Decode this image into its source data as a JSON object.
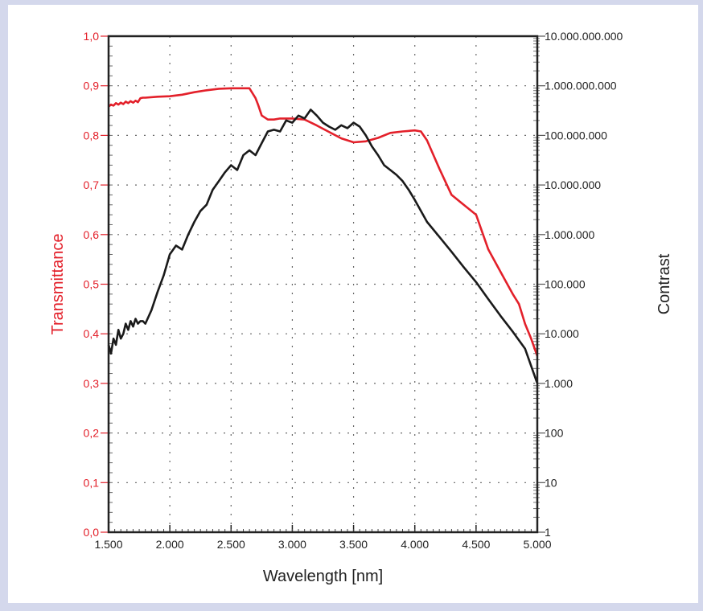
{
  "chart_data": {
    "type": "line",
    "title": "",
    "xlabel": "Wavelength [nm]",
    "ylabel_left": "Transmittance",
    "ylabel_right": "Contrast",
    "xlim": [
      1500,
      5000
    ],
    "ylim_left": [
      0.0,
      1.0
    ],
    "ylim_right": [
      1,
      10000000000
    ],
    "right_scale": "log",
    "grid": true,
    "x_ticks": [
      {
        "v": 1500,
        "label": "1.500"
      },
      {
        "v": 2000,
        "label": "2.000"
      },
      {
        "v": 2500,
        "label": "2.500"
      },
      {
        "v": 3000,
        "label": "3.000"
      },
      {
        "v": 3500,
        "label": "3.500"
      },
      {
        "v": 4000,
        "label": "4.000"
      },
      {
        "v": 4500,
        "label": "4.500"
      },
      {
        "v": 5000,
        "label": "5.000"
      }
    ],
    "y_left_ticks": [
      {
        "v": 0.0,
        "label": "0,0"
      },
      {
        "v": 0.1,
        "label": "0,1"
      },
      {
        "v": 0.2,
        "label": "0,2"
      },
      {
        "v": 0.3,
        "label": "0,3"
      },
      {
        "v": 0.4,
        "label": "0,4"
      },
      {
        "v": 0.5,
        "label": "0,5"
      },
      {
        "v": 0.6,
        "label": "0,6"
      },
      {
        "v": 0.7,
        "label": "0,7"
      },
      {
        "v": 0.8,
        "label": "0,8"
      },
      {
        "v": 0.9,
        "label": "0,9"
      },
      {
        "v": 1.0,
        "label": "1,0"
      }
    ],
    "y_right_ticks": [
      {
        "v": 1,
        "label": "1"
      },
      {
        "v": 10,
        "label": "10"
      },
      {
        "v": 100,
        "label": "100"
      },
      {
        "v": 1000,
        "label": "1.000"
      },
      {
        "v": 10000,
        "label": "10.000"
      },
      {
        "v": 100000,
        "label": "100.000"
      },
      {
        "v": 1000000,
        "label": "1.000.000"
      },
      {
        "v": 10000000,
        "label": "10.000.000"
      },
      {
        "v": 100000000,
        "label": "100.000.000"
      },
      {
        "v": 1000000000,
        "label": "1.000.000.000"
      },
      {
        "v": 10000000000,
        "label": "10.000.000.000"
      }
    ],
    "series": [
      {
        "axis": "left",
        "color": "#e3202a",
        "x": [
          1500,
          1520,
          1540,
          1560,
          1580,
          1600,
          1620,
          1640,
          1660,
          1680,
          1700,
          1720,
          1740,
          1760,
          1780,
          1800,
          1900,
          2000,
          2100,
          2200,
          2300,
          2400,
          2500,
          2600,
          2650,
          2700,
          2720,
          2750,
          2800,
          2850,
          2900,
          3000,
          3100,
          3200,
          3300,
          3400,
          3500,
          3600,
          3700,
          3800,
          3900,
          4000,
          4050,
          4100,
          4200,
          4300,
          4400,
          4500,
          4600,
          4700,
          4800,
          4850,
          4900,
          4950,
          5000
        ],
        "y": [
          0.858,
          0.862,
          0.86,
          0.865,
          0.862,
          0.866,
          0.863,
          0.868,
          0.865,
          0.869,
          0.866,
          0.87,
          0.867,
          0.875,
          0.876,
          0.876,
          0.878,
          0.879,
          0.882,
          0.887,
          0.891,
          0.894,
          0.895,
          0.895,
          0.895,
          0.875,
          0.862,
          0.84,
          0.832,
          0.832,
          0.834,
          0.834,
          0.832,
          0.82,
          0.807,
          0.794,
          0.786,
          0.788,
          0.795,
          0.805,
          0.808,
          0.81,
          0.808,
          0.79,
          0.733,
          0.68,
          0.66,
          0.64,
          0.57,
          0.525,
          0.48,
          0.46,
          0.42,
          0.39,
          0.355
        ]
      },
      {
        "axis": "right",
        "color": "#1a1a1a",
        "x": [
          1500,
          1520,
          1540,
          1560,
          1580,
          1600,
          1620,
          1640,
          1660,
          1680,
          1700,
          1720,
          1740,
          1760,
          1780,
          1800,
          1850,
          1900,
          1950,
          2000,
          2050,
          2100,
          2150,
          2200,
          2250,
          2300,
          2350,
          2400,
          2450,
          2500,
          2550,
          2600,
          2650,
          2700,
          2750,
          2800,
          2850,
          2900,
          2950,
          3000,
          3050,
          3100,
          3150,
          3200,
          3250,
          3300,
          3350,
          3400,
          3450,
          3500,
          3550,
          3600,
          3650,
          3700,
          3750,
          3800,
          3850,
          3900,
          3950,
          4000,
          4050,
          4100,
          4200,
          4300,
          4400,
          4500,
          4600,
          4700,
          4800,
          4900,
          5000
        ],
        "y": [
          6000,
          4000,
          8000,
          6000,
          12000,
          8000,
          10000,
          16000,
          12000,
          18000,
          14000,
          20000,
          16000,
          18000,
          18000,
          16000,
          30000,
          70000,
          150000,
          400000,
          600000,
          500000,
          1000000,
          1800000,
          3000000,
          4000000,
          8000000,
          12000000,
          18000000,
          25000000,
          20000000,
          40000000,
          50000000,
          40000000,
          70000000,
          120000000,
          130000000,
          120000000,
          200000000,
          180000000,
          250000000,
          220000000,
          330000000,
          250000000,
          180000000,
          150000000,
          130000000,
          160000000,
          140000000,
          180000000,
          150000000,
          100000000,
          60000000,
          40000000,
          25000000,
          20000000,
          16000000,
          12000000,
          8000000,
          5000000,
          3000000,
          1800000,
          900000,
          450000,
          220000,
          110000,
          50000,
          23000,
          11000,
          5000,
          1000
        ]
      }
    ]
  }
}
